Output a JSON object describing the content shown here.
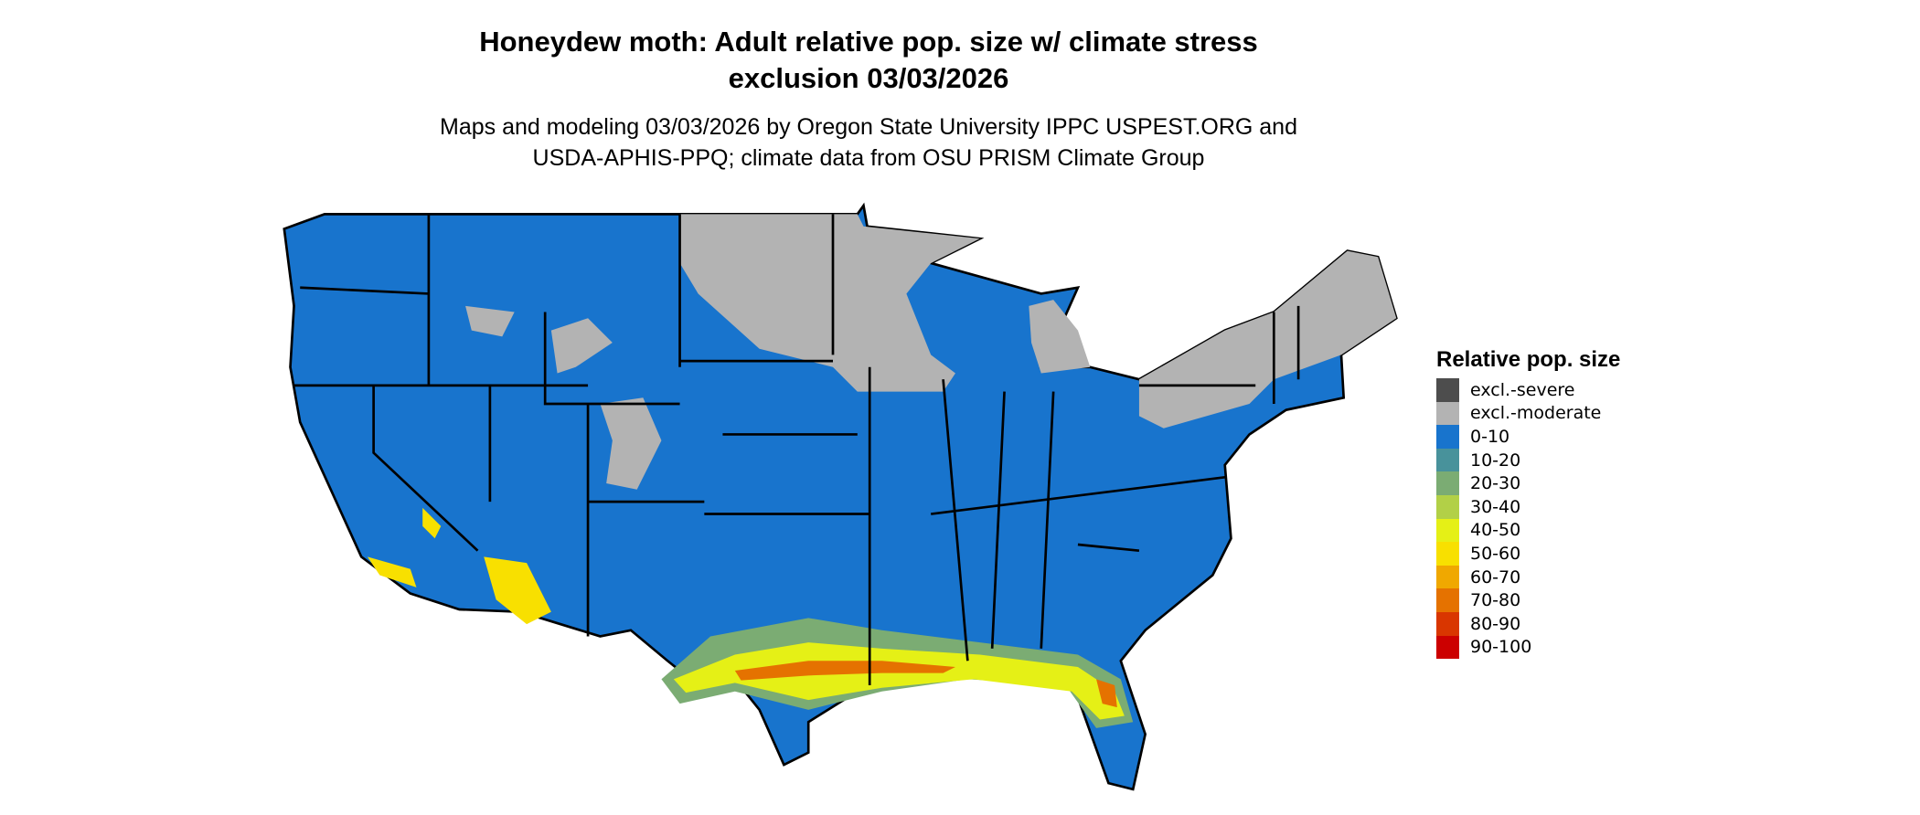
{
  "title": "Honeydew moth: Adult relative pop. size w/ climate stress exclusion 03/03/2026",
  "title_line1": "Honeydew moth: Adult relative pop. size w/ climate stress",
  "title_line2": "exclusion 03/03/2026",
  "subtitle_line1": "Maps and modeling 03/03/2026 by Oregon State University IPPC USPEST.ORG and",
  "subtitle_line2": "USDA-APHIS-PPQ; climate data from OSU PRISM Climate Group",
  "legend": {
    "title": "Relative pop. size",
    "items": [
      {
        "label": "excl.-severe",
        "color": "#4d4d4d"
      },
      {
        "label": "excl.-moderate",
        "color": "#b3b3b3"
      },
      {
        "label": "0-10",
        "color": "#1874cd"
      },
      {
        "label": "10-20",
        "color": "#48929b"
      },
      {
        "label": "20-30",
        "color": "#7bac73"
      },
      {
        "label": "30-40",
        "color": "#b2d047"
      },
      {
        "label": "40-50",
        "color": "#e5f016"
      },
      {
        "label": "50-60",
        "color": "#f8e000"
      },
      {
        "label": "60-70",
        "color": "#f0a800"
      },
      {
        "label": "70-80",
        "color": "#e57200"
      },
      {
        "label": "80-90",
        "color": "#d93600"
      },
      {
        "label": "90-100",
        "color": "#cc0000"
      }
    ]
  },
  "map": {
    "region": "Contiguous United States",
    "dominant_class": "0-10",
    "excluded_moderate_regions": [
      "Northern Plains",
      "Upper Midwest",
      "Northeast",
      "Rocky Mountain high elevations"
    ],
    "highest_classes_regions": [
      "Gulf Coast (TX to FL)",
      "Southern California",
      "Southern Arizona",
      "Central Florida"
    ]
  }
}
